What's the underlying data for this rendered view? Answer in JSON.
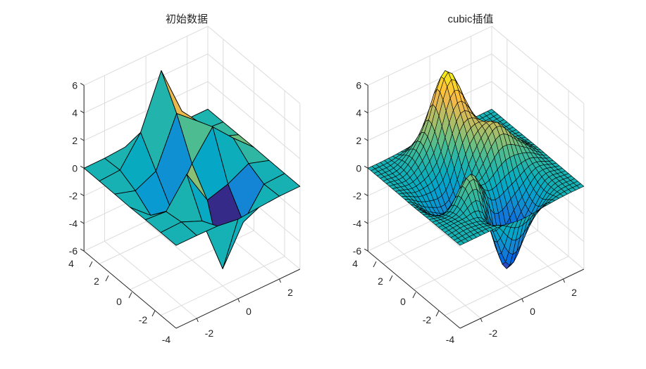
{
  "figure": {
    "background": "#ffffff",
    "grid_color": "#dcdcdc",
    "axis_color": "#262626"
  },
  "chart_data": [
    {
      "type": "surface",
      "title": "初始数据",
      "function": "peaks",
      "grid": {
        "x": [
          -3,
          3
        ],
        "y": [
          -3,
          3
        ],
        "points": 7
      },
      "xlabel": "",
      "ylabel": "",
      "zlabel": "",
      "x_ticks": [
        "-2",
        "0",
        "2"
      ],
      "y_ticks": [
        "-4",
        "-2",
        "0",
        "2",
        "4"
      ],
      "z_ticks": [
        "-6",
        "-4",
        "-2",
        "0",
        "2",
        "4",
        "6"
      ],
      "zlim": [
        -6,
        6
      ],
      "colormap": "parula",
      "grid_on": true,
      "peak_max": 5.5,
      "peak_min": -5.3
    },
    {
      "type": "surface",
      "title": "cubic插值",
      "function": "peaks (cubic interpolation)",
      "grid": {
        "x": [
          -3,
          3
        ],
        "y": [
          -3,
          3
        ],
        "points": 31
      },
      "xlabel": "",
      "ylabel": "",
      "zlabel": "",
      "x_ticks": [
        "-2",
        "0",
        "2"
      ],
      "y_ticks": [
        "-4",
        "-2",
        "0",
        "2",
        "4"
      ],
      "z_ticks": [
        "-6",
        "-4",
        "-2",
        "0",
        "2",
        "4",
        "6"
      ],
      "zlim": [
        -6,
        6
      ],
      "colormap": "parula",
      "grid_on": true,
      "peak_max": 8.1,
      "peak_min": -6.5
    }
  ],
  "plots": [
    {
      "title": "初始数据",
      "x_ticks": [
        "-2",
        "0",
        "2"
      ],
      "y_ticks": [
        "-4",
        "-2",
        "0",
        "2",
        "4"
      ],
      "z_ticks": [
        "-6",
        "-4",
        "-2",
        "0",
        "2",
        "4",
        "6"
      ]
    },
    {
      "title": "cubic插值",
      "x_ticks": [
        "-2",
        "0",
        "2"
      ],
      "y_ticks": [
        "-4",
        "-2",
        "0",
        "2",
        "4"
      ],
      "z_ticks": [
        "-6",
        "-4",
        "-2",
        "0",
        "2",
        "4",
        "6"
      ]
    }
  ]
}
